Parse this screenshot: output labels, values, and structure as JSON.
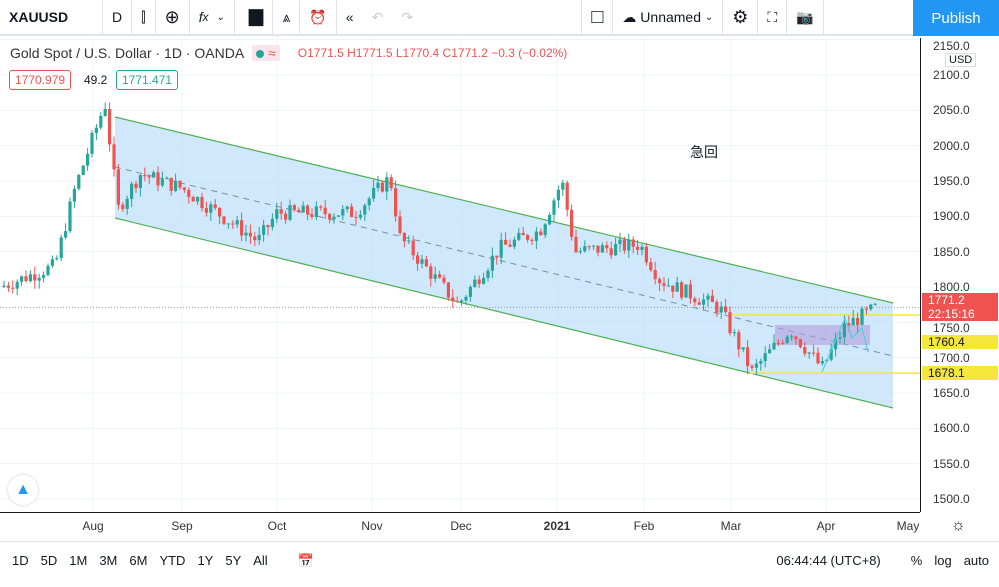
{
  "toolbar": {
    "symbol": "XAUUSD",
    "interval": "D",
    "layout_name": "Unnamed",
    "publish": "Publish",
    "icons": [
      "candles-icon",
      "plus-circle-icon",
      "indicators-icon",
      "chevron-down-icon",
      "templates-icon",
      "compare-icon",
      "alert-icon",
      "replay-icon",
      "undo-icon",
      "redo-icon",
      "square-icon",
      "cloud-icon",
      "chevron-down-icon",
      "gear-icon",
      "fullscreen-icon",
      "camera-icon"
    ]
  },
  "legend": {
    "title": "Gold Spot / U.S. Dollar · 1D · OANDA",
    "ohlc": "O1771.5 H1771.5 L1770.4 C1771.2 −0.3 (−0.02%)",
    "bid": "1770.979",
    "spread": "49.2",
    "ask": "1771.471"
  },
  "annotation": "急回",
  "price_axis": {
    "currency": "USD",
    "ticks": [
      "2150.0",
      "2100.0",
      "2050.0",
      "2000.0",
      "1950.0",
      "1900.0",
      "1850.0",
      "1800.0",
      "1750.0",
      "1700.0",
      "1650.0",
      "1600.0",
      "1550.0",
      "1500.0"
    ],
    "last_price": "1771.2",
    "countdown": "22:15:16",
    "level_1": "1760.4",
    "level_2": "1678.1"
  },
  "time_axis": [
    "Aug",
    "Sep",
    "Oct",
    "Nov",
    "Dec",
    "2021",
    "Feb",
    "Mar",
    "Apr",
    "May"
  ],
  "bottom": {
    "ranges": [
      "1D",
      "5D",
      "1M",
      "3M",
      "6M",
      "YTD",
      "1Y",
      "5Y",
      "All"
    ],
    "clock": "06:44:44 (UTC+8)",
    "pct": "%",
    "log": "log",
    "auto": "auto"
  },
  "colors": {
    "up": "#26a69a",
    "down": "#ef5350",
    "channel": "#4caf50",
    "channel_fill": "#bbdefb",
    "level": "#f5e63b",
    "accent": "#2196f3"
  },
  "chart_data": {
    "type": "candlestick",
    "symbol": "XAUUSD",
    "ylim": [
      1480,
      2160
    ],
    "approx_closes": [
      [
        "Jul",
        1800
      ],
      [
        "late Jul",
        1900
      ],
      [
        "Aug 6",
        2065
      ],
      [
        "Aug 12",
        1910
      ],
      [
        "Aug 20",
        1960
      ],
      [
        "Sep",
        1940
      ],
      [
        "Sep 24",
        1860
      ],
      [
        "Oct",
        1900
      ],
      [
        "Oct 20",
        1905
      ],
      [
        "Nov 5",
        1950
      ],
      [
        "Nov 10",
        1870
      ],
      [
        "Nov 30",
        1775
      ],
      [
        "Dec 15",
        1860
      ],
      [
        "Jan 5",
        1950
      ],
      [
        "Jan 12",
        1850
      ],
      [
        "Jan 26",
        1860
      ],
      [
        "Feb 5",
        1800
      ],
      [
        "Feb 15",
        1820
      ],
      [
        "Feb 25",
        1770
      ],
      [
        "Mar 8",
        1680
      ],
      [
        "Mar 18",
        1740
      ],
      [
        "Mar 30",
        1680
      ],
      [
        "Apr 10",
        1745
      ],
      [
        "Apr 16",
        1771
      ]
    ]
  }
}
